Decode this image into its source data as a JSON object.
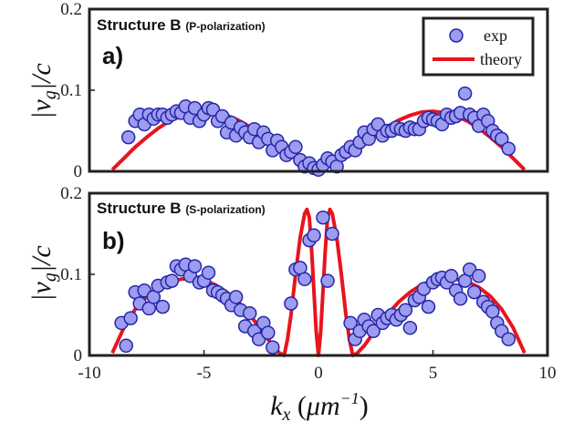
{
  "chart_data": [
    {
      "type": "scatter",
      "panel_label": "a)",
      "title": "Structure B",
      "subtitle": "(P-polarization)",
      "ylabel": "|v_g|/c",
      "xlim": [
        -10,
        10
      ],
      "ylim": [
        0,
        0.2
      ],
      "yticks": [
        "0",
        "0.1",
        "0.2"
      ],
      "legend": {
        "placement": "top-right",
        "entries": [
          "exp",
          "theory"
        ]
      },
      "colors": {
        "exp_fill": "#9c9cf0",
        "exp_edge": "#2626a8",
        "theory": "#e8141c"
      },
      "series": [
        {
          "name": "exp",
          "x": [
            -8.3,
            -8.0,
            -7.8,
            -7.6,
            -7.4,
            -7.2,
            -7.0,
            -6.8,
            -6.6,
            -6.4,
            -6.2,
            -6.0,
            -5.8,
            -5.6,
            -5.4,
            -5.2,
            -5.0,
            -4.8,
            -4.6,
            -4.4,
            -4.2,
            -4.0,
            -3.8,
            -3.6,
            -3.4,
            -3.2,
            -3.0,
            -2.8,
            -2.6,
            -2.4,
            -2.2,
            -2.0,
            -1.8,
            -1.6,
            -1.4,
            -1.2,
            -1.0,
            -0.8,
            -0.6,
            -0.4,
            -0.2,
            0.0,
            0.2,
            0.4,
            0.6,
            0.8,
            1.0,
            1.2,
            1.4,
            1.6,
            1.8,
            2.0,
            2.2,
            2.4,
            2.6,
            2.8,
            3.0,
            3.2,
            3.4,
            3.6,
            3.8,
            4.0,
            4.2,
            4.4,
            4.6,
            4.8,
            5.0,
            5.2,
            5.4,
            5.6,
            5.8,
            6.0,
            6.2,
            6.4,
            6.6,
            6.8,
            7.0,
            7.2,
            7.4,
            7.6,
            7.8,
            8.0,
            8.3
          ],
          "y": [
            0.042,
            0.062,
            0.07,
            0.058,
            0.07,
            0.065,
            0.07,
            0.07,
            0.066,
            0.07,
            0.074,
            0.072,
            0.08,
            0.066,
            0.078,
            0.062,
            0.07,
            0.078,
            0.076,
            0.062,
            0.068,
            0.048,
            0.06,
            0.044,
            0.054,
            0.048,
            0.042,
            0.052,
            0.036,
            0.048,
            0.04,
            0.026,
            0.038,
            0.03,
            0.02,
            0.024,
            0.03,
            0.014,
            0.006,
            0.01,
            0.004,
            0.002,
            0.008,
            0.016,
            0.012,
            0.006,
            0.02,
            0.024,
            0.03,
            0.026,
            0.036,
            0.048,
            0.04,
            0.052,
            0.058,
            0.044,
            0.05,
            0.05,
            0.054,
            0.052,
            0.05,
            0.054,
            0.052,
            0.052,
            0.062,
            0.066,
            0.064,
            0.062,
            0.058,
            0.07,
            0.066,
            0.068,
            0.072,
            0.096,
            0.07,
            0.066,
            0.056,
            0.07,
            0.062,
            0.05,
            0.044,
            0.04,
            0.028
          ]
        },
        {
          "name": "theory",
          "x": [
            -9,
            -8.5,
            -8,
            -7.5,
            -7,
            -6.5,
            -6,
            -5.5,
            -5,
            -4.5,
            -4,
            -3.5,
            -3,
            -2.5,
            -2,
            -1.5,
            -1,
            -0.5,
            0,
            0.5,
            1,
            1.5,
            2,
            2.5,
            3,
            3.5,
            4,
            4.5,
            5,
            5.5,
            6,
            6.5,
            7,
            7.5,
            8,
            8.5,
            9
          ],
          "y": [
            0.002,
            0.016,
            0.03,
            0.042,
            0.053,
            0.062,
            0.068,
            0.072,
            0.074,
            0.073,
            0.069,
            0.063,
            0.055,
            0.046,
            0.036,
            0.026,
            0.016,
            0.007,
            0.001,
            0.007,
            0.016,
            0.026,
            0.036,
            0.046,
            0.055,
            0.063,
            0.069,
            0.073,
            0.074,
            0.072,
            0.068,
            0.062,
            0.053,
            0.042,
            0.03,
            0.016,
            0.002
          ]
        }
      ]
    },
    {
      "type": "scatter",
      "panel_label": "b)",
      "title": "Structure B",
      "subtitle": "(S-polarization)",
      "xlabel": "k_x (μm^-1)",
      "ylabel": "|v_g|/c",
      "xlim": [
        -10,
        10
      ],
      "ylim": [
        0,
        0.2
      ],
      "xticks": [
        "-10",
        "-5",
        "0",
        "5",
        "10"
      ],
      "yticks": [
        "0",
        "0.1",
        "0.2"
      ],
      "colors": {
        "exp_fill": "#9c9cf0",
        "exp_edge": "#2626a8",
        "theory": "#e8141c"
      },
      "series": [
        {
          "name": "exp",
          "x": [
            -8.6,
            -8.4,
            -8.2,
            -8.0,
            -7.8,
            -7.6,
            -7.4,
            -7.2,
            -7.0,
            -6.8,
            -6.6,
            -6.4,
            -6.2,
            -6.0,
            -5.8,
            -5.6,
            -5.4,
            -5.2,
            -5.0,
            -4.8,
            -4.6,
            -4.4,
            -4.2,
            -4.0,
            -3.8,
            -3.6,
            -3.4,
            -3.2,
            -3.0,
            -2.8,
            -2.6,
            -2.4,
            -2.2,
            -2.0,
            -1.2,
            -1.0,
            -0.8,
            -0.6,
            -0.4,
            -0.2,
            0.2,
            0.4,
            0.6,
            1.4,
            1.6,
            1.8,
            2.0,
            2.2,
            2.4,
            2.6,
            2.8,
            3.0,
            3.2,
            3.4,
            3.6,
            3.8,
            4.0,
            4.2,
            4.4,
            4.6,
            4.8,
            5.0,
            5.2,
            5.4,
            5.6,
            5.8,
            6.0,
            6.2,
            6.4,
            6.6,
            6.8,
            7.0,
            7.2,
            7.4,
            7.6,
            7.8,
            8.0,
            8.3
          ],
          "y": [
            0.04,
            0.012,
            0.046,
            0.078,
            0.064,
            0.08,
            0.058,
            0.072,
            0.086,
            0.06,
            0.09,
            0.092,
            0.11,
            0.106,
            0.112,
            0.098,
            0.11,
            0.09,
            0.092,
            0.102,
            0.08,
            0.078,
            0.074,
            0.07,
            0.062,
            0.072,
            0.056,
            0.036,
            0.052,
            0.03,
            0.02,
            0.04,
            0.028,
            0.01,
            0.064,
            0.106,
            0.108,
            0.094,
            0.142,
            0.148,
            0.17,
            0.092,
            0.15,
            0.04,
            0.02,
            0.03,
            0.044,
            0.036,
            0.03,
            0.05,
            0.04,
            0.046,
            0.05,
            0.044,
            0.05,
            0.056,
            0.034,
            0.068,
            0.072,
            0.082,
            0.06,
            0.09,
            0.094,
            0.096,
            0.09,
            0.098,
            0.08,
            0.07,
            0.092,
            0.106,
            0.078,
            0.098,
            0.066,
            0.06,
            0.054,
            0.04,
            0.03,
            0.02
          ]
        },
        {
          "name": "theory",
          "x": [
            -9,
            -8.5,
            -8,
            -7.5,
            -7,
            -6.5,
            -6,
            -5.5,
            -5,
            -4.5,
            -4,
            -3.5,
            -3,
            -2.5,
            -2,
            -1.7,
            -1.5,
            -1.35,
            -1.2,
            -1.0,
            -0.8,
            -0.6,
            -0.5,
            -0.4,
            -0.3,
            -0.2,
            -0.1,
            0,
            0.1,
            0.2,
            0.3,
            0.4,
            0.5,
            0.6,
            0.8,
            1.0,
            1.2,
            1.35,
            1.5,
            1.7,
            2,
            2.5,
            3,
            3.5,
            4,
            4.5,
            5,
            5.5,
            6,
            6.5,
            7,
            7.5,
            8,
            8.5,
            9
          ],
          "y": [
            0.003,
            0.034,
            0.057,
            0.073,
            0.084,
            0.091,
            0.094,
            0.095,
            0.093,
            0.087,
            0.078,
            0.066,
            0.05,
            0.032,
            0.012,
            0.003,
            0.0,
            0.02,
            0.05,
            0.1,
            0.145,
            0.175,
            0.18,
            0.17,
            0.13,
            0.08,
            0.03,
            0.0,
            0.03,
            0.08,
            0.13,
            0.17,
            0.18,
            0.175,
            0.145,
            0.1,
            0.05,
            0.02,
            0.0,
            0.003,
            0.012,
            0.032,
            0.05,
            0.066,
            0.078,
            0.087,
            0.093,
            0.095,
            0.094,
            0.091,
            0.084,
            0.073,
            0.057,
            0.034,
            0.003
          ]
        }
      ]
    }
  ]
}
